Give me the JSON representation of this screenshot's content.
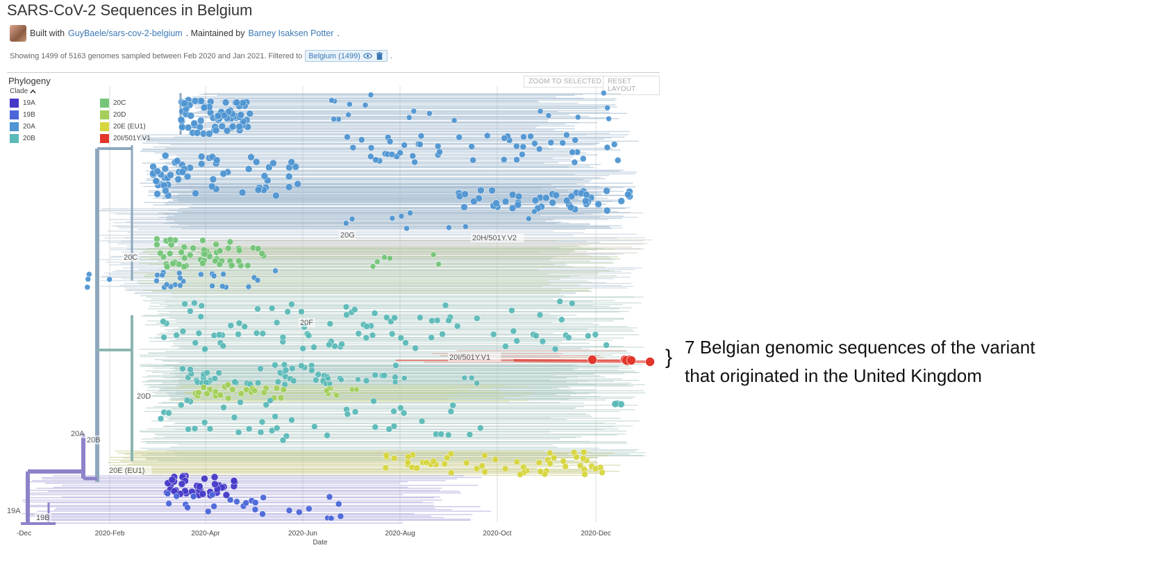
{
  "header": {
    "title": "SARS-CoV-2 Sequences in Belgium",
    "built_with_prefix": "Built with",
    "built_with_link": "GuyBaele/sars-cov-2-belgium",
    "maintained_prefix": ". Maintained by",
    "maintainer_link": "Barney Isaksen Potter",
    "maintainer_suffix": "."
  },
  "filter_bar": {
    "text": "Showing 1499 of 5163 genomes sampled between Feb 2020 and Jan 2021. Filtered to",
    "filter_label": "Belgium (1499)",
    "suffix": "."
  },
  "phylogeny": {
    "title": "Phylogeny",
    "zoom_button": "ZOOM TO SELECTED",
    "reset_button": "RESET LAYOUT",
    "legend_title": "Clade",
    "legend": [
      {
        "label": "19A",
        "color": "#4539c8"
      },
      {
        "label": "19B",
        "color": "#4a66d9"
      },
      {
        "label": "20A",
        "color": "#4f95d2"
      },
      {
        "label": "20B",
        "color": "#5bbab8"
      },
      {
        "label": "20C",
        "color": "#74c579"
      },
      {
        "label": "20D",
        "color": "#a4cf5a"
      },
      {
        "label": "20E (EU1)",
        "color": "#d7d63f"
      },
      {
        "label": "20I/501Y.V1",
        "color": "#e2362b"
      }
    ],
    "clade_labels": [
      "20G",
      "20H/501Y.V2",
      "20C",
      "20F",
      "20I/501Y.V1",
      "20D",
      "20A",
      "20B",
      "20E (EU1)",
      "19A",
      "19B"
    ],
    "x_axis": {
      "title": "Date",
      "ticks": [
        "-Dec",
        "2020-Feb",
        "2020-Apr",
        "2020-Jun",
        "2020-Aug",
        "2020-Oct",
        "2020-Dec"
      ]
    }
  },
  "annotation": {
    "brace": "}",
    "line1": "7 Belgian genomic sequences of the variant",
    "line2": "that originated in the United Kingdom"
  }
}
